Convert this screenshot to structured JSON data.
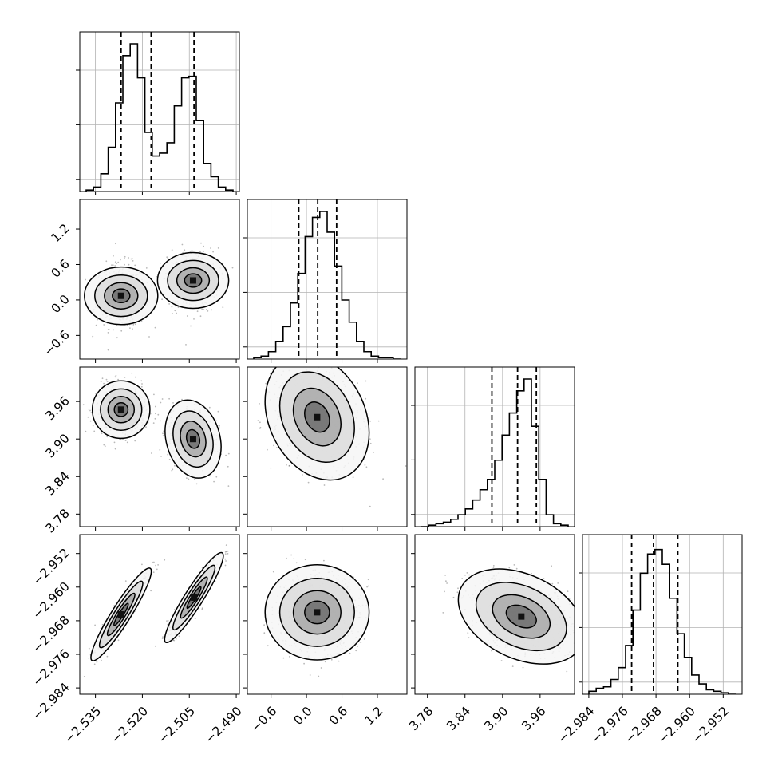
{
  "chart_data": {
    "type": "corner",
    "grid": true,
    "parameters": [
      {
        "name": "",
        "range": [
          -2.54,
          -2.489
        ],
        "ticks": [
          -2.535,
          -2.52,
          -2.505,
          -2.49
        ],
        "tick_labels": [
          "−2.535",
          "−2.520",
          "−2.505",
          "−2.490"
        ],
        "quantiles": [
          -2.5268,
          -2.5172,
          -2.5035
        ]
      },
      {
        "name": "",
        "range": [
          -1.0,
          1.7
        ],
        "ticks": [
          -0.6,
          0.0,
          0.6,
          1.2
        ],
        "tick_labels": [
          "−0.6",
          "0.0",
          "0.6",
          "1.2"
        ],
        "quantiles": [
          -0.13,
          0.19,
          0.51
        ]
      },
      {
        "name": "",
        "range": [
          3.76,
          4.015
        ],
        "ticks": [
          3.78,
          3.84,
          3.9,
          3.96
        ],
        "tick_labels": [
          "3.78",
          "3.84",
          "3.90",
          "3.96"
        ],
        "quantiles": [
          3.883,
          3.924,
          3.954
        ]
      },
      {
        "name": "",
        "range": [
          -2.9855,
          -2.9475
        ],
        "ticks": [
          -2.984,
          -2.976,
          -2.968,
          -2.96,
          -2.952
        ],
        "tick_labels": [
          "−2.984",
          "−2.976",
          "−2.968",
          "−2.960",
          "−2.952"
        ],
        "quantiles": [
          -2.9738,
          -2.9686,
          -2.9628
        ]
      }
    ],
    "histograms": [
      {
        "values": [
          0.01,
          0.03,
          0.12,
          0.3,
          0.6,
          0.92,
          1.0,
          0.77,
          0.4,
          0.24,
          0.26,
          0.33,
          0.58,
          0.77,
          0.78,
          0.48,
          0.19,
          0.1,
          0.03,
          0.01
        ]
      },
      {
        "values": [
          0.01,
          0.02,
          0.05,
          0.12,
          0.22,
          0.38,
          0.58,
          0.83,
          0.96,
          1.0,
          0.86,
          0.63,
          0.4,
          0.25,
          0.12,
          0.05,
          0.02,
          0.01,
          0.01,
          0.0
        ]
      },
      {
        "values": [
          0.0,
          0.01,
          0.02,
          0.03,
          0.05,
          0.08,
          0.12,
          0.18,
          0.25,
          0.32,
          0.45,
          0.62,
          0.77,
          0.92,
          1.0,
          0.68,
          0.32,
          0.08,
          0.02,
          0.01
        ]
      },
      {
        "values": [
          0.02,
          0.04,
          0.05,
          0.1,
          0.18,
          0.33,
          0.57,
          0.82,
          0.95,
          0.98,
          0.88,
          0.65,
          0.41,
          0.25,
          0.13,
          0.07,
          0.03,
          0.02,
          0.01,
          0.0
        ]
      }
    ],
    "pairs": [
      {
        "row": 1,
        "col": 0,
        "clusters": [
          {
            "mean": [
              -2.5268,
              0.07
            ],
            "sd": [
              0.004,
              0.27
            ],
            "corr": 0.0,
            "w": 0.55
          },
          {
            "mean": [
              -2.5038,
              0.33
            ],
            "sd": [
              0.004,
              0.27
            ],
            "corr": 0.0,
            "w": 0.45
          }
        ]
      },
      {
        "row": 2,
        "col": 0,
        "clusters": [
          {
            "mean": [
              -2.5268,
              3.947
            ],
            "sd": [
              0.004,
              0.02
            ],
            "corr": 0.0,
            "w": 0.55
          },
          {
            "mean": [
              -2.5038,
              3.9
            ],
            "sd": [
              0.004,
              0.028
            ],
            "corr": -0.2,
            "w": 0.45
          }
        ]
      },
      {
        "row": 3,
        "col": 0,
        "clusters": [
          {
            "mean": [
              -2.5268,
              -2.9665
            ],
            "sd": [
              0.0042,
              0.0048
            ],
            "corr": 0.93,
            "w": 0.55
          },
          {
            "mean": [
              -2.5035,
              -2.9625
            ],
            "sd": [
              0.0042,
              0.0048
            ],
            "corr": 0.93,
            "w": 0.45
          }
        ]
      },
      {
        "row": 2,
        "col": 1,
        "clusters": [
          {
            "mean": [
              0.18,
              3.935
            ],
            "sd": [
              0.35,
              0.04
            ],
            "corr": -0.25,
            "w": 1.0
          }
        ]
      },
      {
        "row": 3,
        "col": 1,
        "clusters": [
          {
            "mean": [
              0.18,
              -2.966
            ],
            "sd": [
              0.35,
              0.0045
            ],
            "corr": 0.0,
            "w": 1.0
          }
        ]
      },
      {
        "row": 3,
        "col": 2,
        "clusters": [
          {
            "mean": [
              3.93,
              -2.967
            ],
            "sd": [
              0.04,
              0.0045
            ],
            "corr": -0.35,
            "w": 1.0
          }
        ]
      }
    ]
  }
}
